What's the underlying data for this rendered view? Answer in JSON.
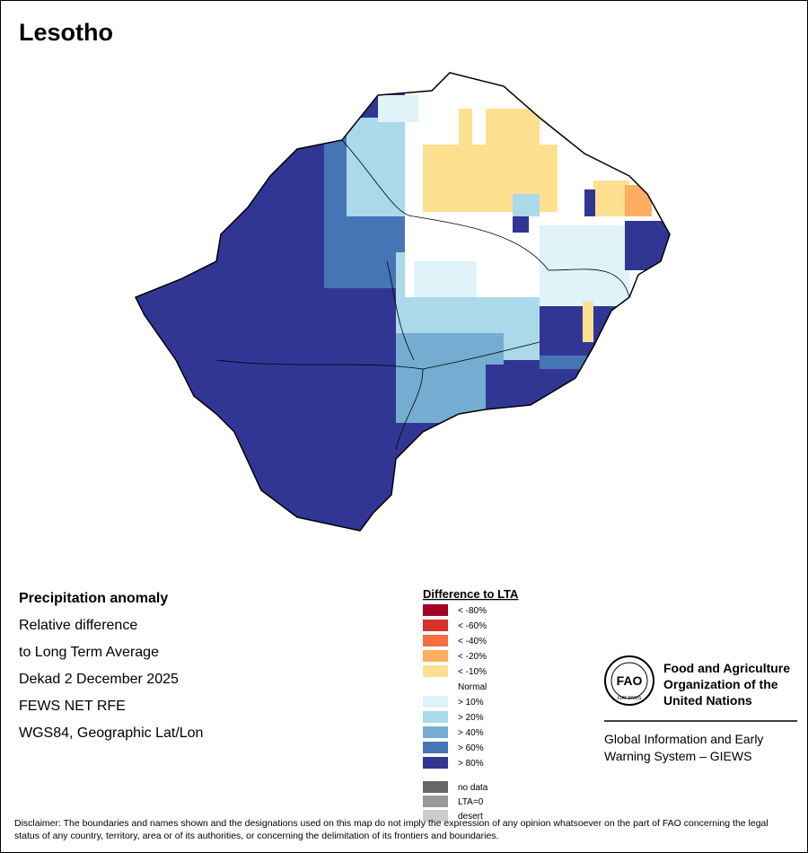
{
  "title": "Lesotho",
  "info": [
    "Precipitation anomaly",
    "Relative difference",
    "to Long Term Average",
    "Dekad 2 December 2025",
    "FEWS NET RFE",
    "WGS84, Geographic Lat/Lon"
  ],
  "legend": {
    "title": "Difference to LTA",
    "items": [
      {
        "label": "< -80%",
        "color": "#a50026"
      },
      {
        "label": "< -60%",
        "color": "#d73027"
      },
      {
        "label": "< -40%",
        "color": "#f46d43"
      },
      {
        "label": "< -20%",
        "color": "#fdae61"
      },
      {
        "label": "< -10%",
        "color": "#fee090"
      },
      {
        "label": "Normal",
        "color": "#ffffff"
      },
      {
        "label": "> 10%",
        "color": "#e0f3f8"
      },
      {
        "label": "> 20%",
        "color": "#abd9e9"
      },
      {
        "label": "> 40%",
        "color": "#74add1"
      },
      {
        "label": "> 60%",
        "color": "#4575b4"
      },
      {
        "label": "> 80%",
        "color": "#313695"
      }
    ],
    "extra": [
      {
        "label": "no data",
        "color": "#666666"
      },
      {
        "label": "LTA=0",
        "color": "#999999"
      },
      {
        "label": "desert",
        "color": "#cccccc"
      }
    ]
  },
  "fao_logo": {
    "letters": "FAO",
    "motto": "FIAT PANIS"
  },
  "organization": [
    "Food and Agriculture",
    "Organization of the",
    "United Nations"
  ],
  "system": [
    "Global Information and Early",
    "Warning System – GIEWS"
  ],
  "disclaimer": "Disclaimer: The boundaries and names shown and the designations used on this map do not imply the expression of any opinion whatsoever on the part of FAO concerning the legal status of any country, territory, area or of its authorities, or concerning the delimitation of its frontiers and boundaries."
}
